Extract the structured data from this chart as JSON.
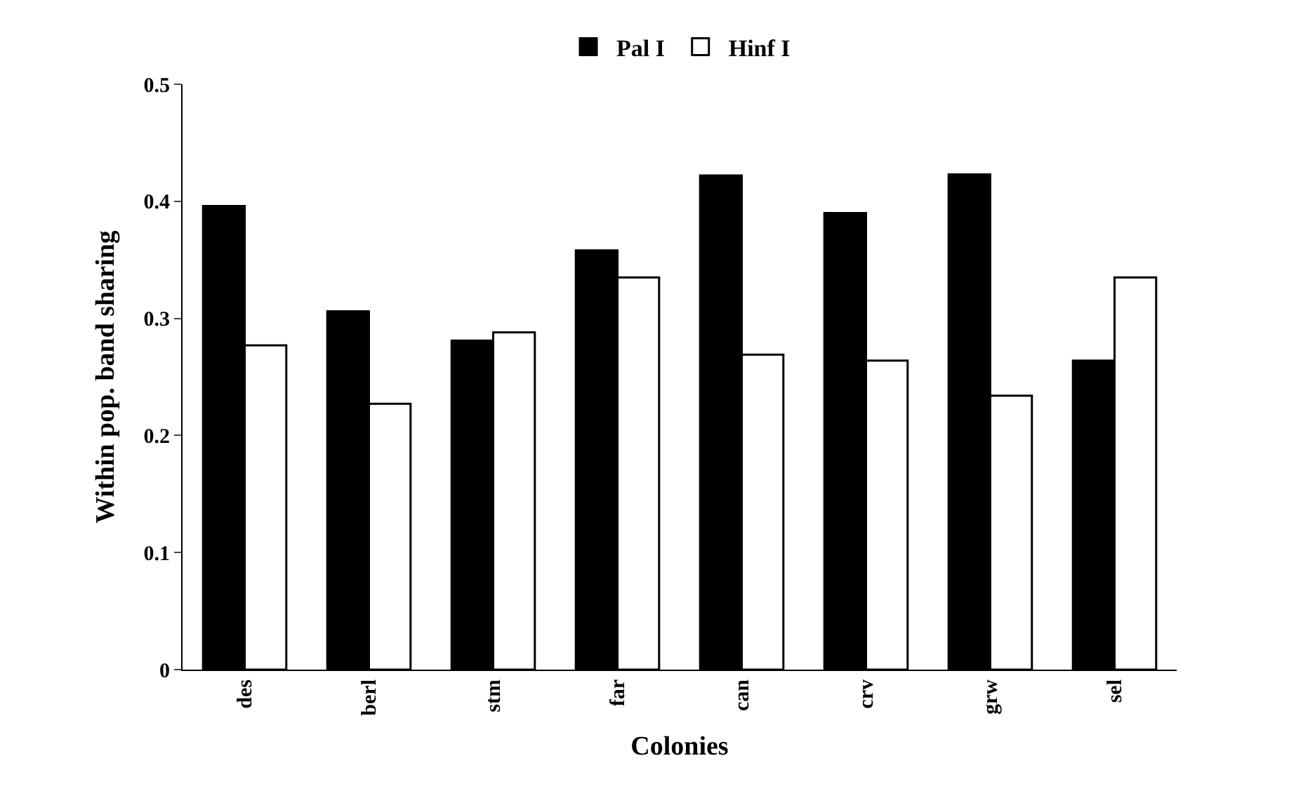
{
  "chart_data": {
    "type": "bar",
    "xlabel": "Colonies",
    "ylabel": "Within pop. band sharing",
    "categories": [
      "des",
      "berl",
      "stm",
      "far",
      "can",
      "crv",
      "grw",
      "sel"
    ],
    "series": [
      {
        "name": "Pal I",
        "color": "#000000",
        "values": [
          0.396,
          0.306,
          0.281,
          0.358,
          0.422,
          0.39,
          0.423,
          0.264
        ]
      },
      {
        "name": "Hinf I",
        "color": "#ffffff",
        "values": [
          0.277,
          0.227,
          0.288,
          0.335,
          0.269,
          0.264,
          0.234,
          0.335
        ]
      }
    ],
    "ylim": [
      0,
      0.5
    ],
    "yticks": [
      0,
      0.1,
      0.2,
      0.3,
      0.4,
      0.5
    ],
    "legend": "top"
  }
}
